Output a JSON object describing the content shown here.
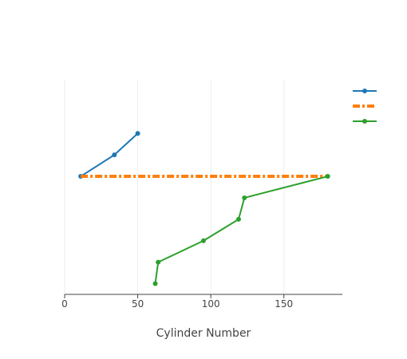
{
  "chart_data": {
    "type": "line",
    "title": "",
    "xlabel": "Cylinder Number",
    "ylabel": "",
    "xlim": [
      0,
      190
    ],
    "ylim": [
      0,
      10
    ],
    "x_ticks": [
      0,
      50,
      100,
      150
    ],
    "grid": true,
    "legend_position": "top-right",
    "series": [
      {
        "x": [
          11,
          34,
          50
        ],
        "y": [
          5.5,
          6.5,
          7.5
        ],
        "color": "#1f77b4",
        "line_style": "solid",
        "markers": true
      },
      {
        "x": [
          11,
          180
        ],
        "y": [
          5.5,
          5.5
        ],
        "color": "#ff7f0e",
        "line_style": "dashdot",
        "markers": false
      },
      {
        "x": [
          62,
          64,
          95,
          119,
          123,
          180
        ],
        "y": [
          0.5,
          1.5,
          2.5,
          3.5,
          4.5,
          5.5
        ],
        "color": "#2ca02c",
        "line_style": "solid",
        "markers": true
      }
    ]
  }
}
